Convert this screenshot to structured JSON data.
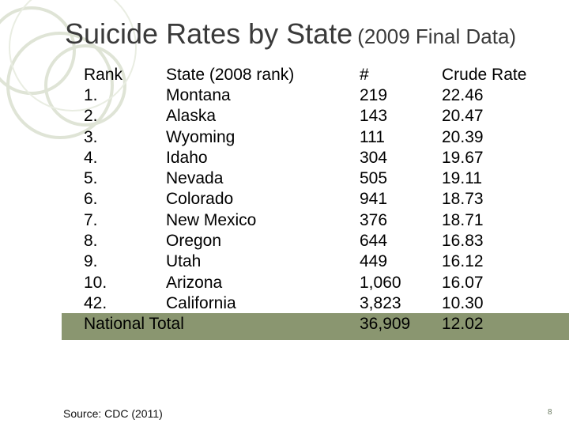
{
  "title": {
    "main": "Suicide Rates by State",
    "sub": "(2009 Final Data)"
  },
  "table": {
    "headers": {
      "rank": "Rank",
      "state": "State (2008 rank)",
      "count": "#",
      "rate": "Crude Rate"
    },
    "rows": [
      {
        "rank": "1.",
        "state": "Montana",
        "count": "219",
        "rate": "22.46"
      },
      {
        "rank": "2.",
        "state": "Alaska",
        "count": "143",
        "rate": "20.47"
      },
      {
        "rank": "3.",
        "state": "Wyoming",
        "count": "111",
        "rate": "20.39"
      },
      {
        "rank": "4.",
        "state": "Idaho",
        "count": "304",
        "rate": "19.67"
      },
      {
        "rank": "5.",
        "state": "Nevada",
        "count": "505",
        "rate": "19.11"
      },
      {
        "rank": "6.",
        "state": "Colorado",
        "count": "941",
        "rate": "18.73"
      },
      {
        "rank": "7.",
        "state": "New Mexico",
        "count": "376",
        "rate": "18.71"
      },
      {
        "rank": "8.",
        "state": "Oregon",
        "count": "644",
        "rate": "16.83"
      },
      {
        "rank": "9.",
        "state": "Utah",
        "count": "449",
        "rate": "16.12"
      },
      {
        "rank": "10.",
        "state": "Arizona",
        "count": "1,060",
        "rate": "16.07"
      },
      {
        "rank": "42.",
        "state": "California",
        "count": "3,823",
        "rate": "10.30"
      }
    ],
    "total": {
      "label": "National Total",
      "count": "36,909",
      "rate": "12.02"
    }
  },
  "source": "Source: CDC (2011)",
  "page_number": "8",
  "colors": {
    "highlight": "#8a9670",
    "decoration": "#dfe4d6",
    "title": "#3a3a3a"
  }
}
